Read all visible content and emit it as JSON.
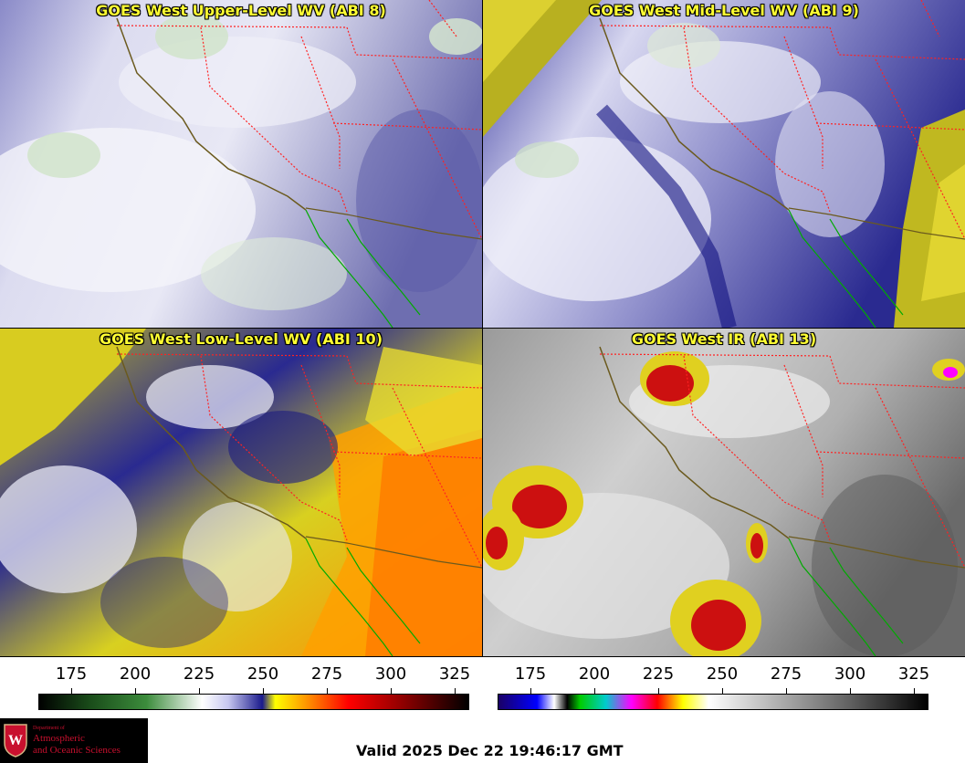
{
  "panels": [
    {
      "title": "GOES West Upper-Level WV (ABI 8)"
    },
    {
      "title": "GOES West Mid-Level WV (ABI 9)"
    },
    {
      "title": "GOES West Low-Level WV (ABI 10)"
    },
    {
      "title": "GOES West IR (ABI 13)"
    }
  ],
  "scales": {
    "wv": {
      "ticks": [
        "175",
        "200",
        "225",
        "250",
        "275",
        "300",
        "325"
      ]
    },
    "ir": {
      "ticks": [
        "175",
        "200",
        "225",
        "250",
        "275",
        "300",
        "325"
      ]
    }
  },
  "logo": {
    "dept": "Department of",
    "line2": "Atmospheric",
    "line3": "and Oceanic Sciences"
  },
  "valid": "Valid 2025 Dec 22 19:46:17 GMT",
  "colors": {
    "wv_colormap": [
      "#000000",
      "#1a4d1a",
      "#3c8c3c",
      "#ffffff",
      "#c8c8f0",
      "#1a1a8c",
      "#ffff00",
      "#ff9900",
      "#ff0000",
      "#8c0000",
      "#000000"
    ],
    "ir_colormap": [
      "#1a0066",
      "#0000ff",
      "#ffffff",
      "#00cc00",
      "#00cccc",
      "#ff00ff",
      "#ff0000",
      "#ffff00",
      "#ffffff",
      "#808080",
      "#000000"
    ],
    "title_text": "#ffff33",
    "state_borders": "#ff2222",
    "coastline": "#6b5a1e",
    "mexico_coast": "#00aa00"
  }
}
